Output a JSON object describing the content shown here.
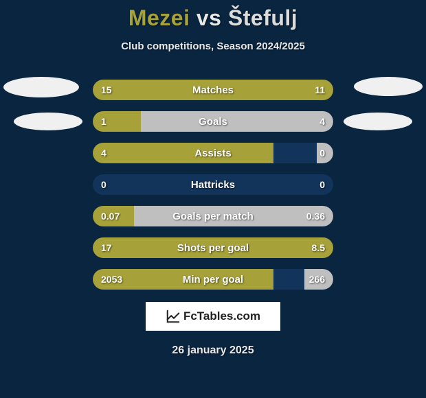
{
  "background_color": "#0a2540",
  "player1": {
    "name": "Mezei",
    "color": "#a7a13a"
  },
  "player2": {
    "name": "Štefulj",
    "color": "#dcdcdc"
  },
  "vs_text": "vs",
  "subtitle": "Club competitions, Season 2024/2025",
  "bar_style": {
    "track_color": "#13345a",
    "left_fill_color": "#a7a13a",
    "right_fill_color": "#bfbfbf",
    "height": 30,
    "radius": 15,
    "label_color": "#ffffff",
    "label_fontsize": 15,
    "value_fontsize": 14
  },
  "stats": [
    {
      "label": "Matches",
      "left_val": "15",
      "right_val": "11",
      "left_pct": 100,
      "right_pct": 0
    },
    {
      "label": "Goals",
      "left_val": "1",
      "right_val": "4",
      "left_pct": 20,
      "right_pct": 80
    },
    {
      "label": "Assists",
      "left_val": "4",
      "right_val": "0",
      "left_pct": 75,
      "right_pct": 7
    },
    {
      "label": "Hattricks",
      "left_val": "0",
      "right_val": "0",
      "left_pct": 0,
      "right_pct": 0
    },
    {
      "label": "Goals per match",
      "left_val": "0.07",
      "right_val": "0.36",
      "left_pct": 17,
      "right_pct": 83
    },
    {
      "label": "Shots per goal",
      "left_val": "17",
      "right_val": "8.5",
      "left_pct": 100,
      "right_pct": 0
    },
    {
      "label": "Min per goal",
      "left_val": "2053",
      "right_val": "266",
      "left_pct": 75,
      "right_pct": 12
    }
  ],
  "logo_text": "FcTables.com",
  "date_text": "26 january 2025",
  "ovals": {
    "color": "#f0f0f0",
    "items": [
      {
        "side": "left1"
      },
      {
        "side": "left2"
      },
      {
        "side": "right1"
      },
      {
        "side": "right2"
      }
    ]
  }
}
